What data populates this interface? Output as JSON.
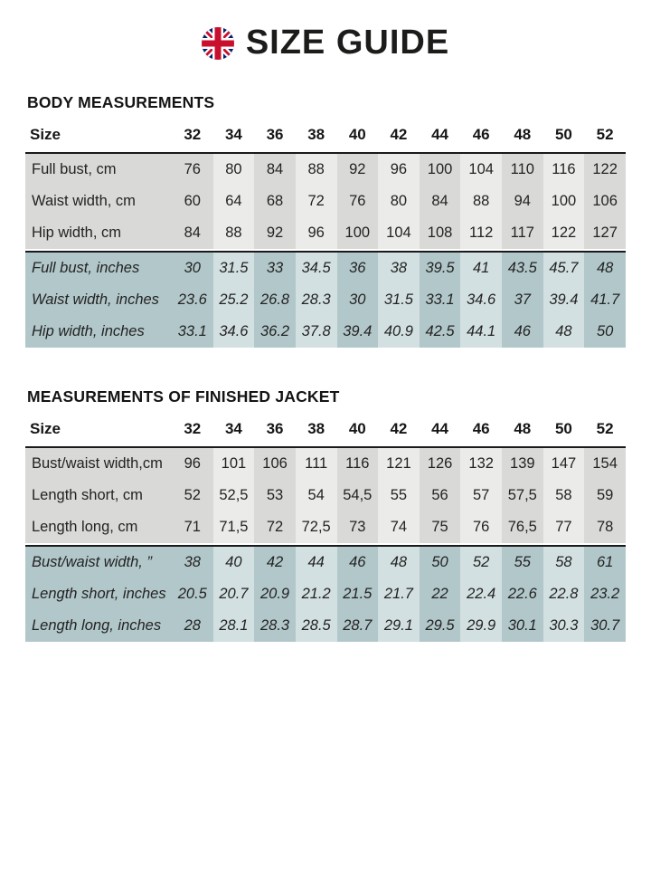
{
  "page": {
    "title": "SIZE GUIDE"
  },
  "colors": {
    "row_gray_dark": "#d9d9d7",
    "row_gray_light": "#ebebe9",
    "row_blue_dark": "#b2c7ca",
    "row_blue_light": "#d3e0e1",
    "rule_black": "#1a1a1a",
    "flag_navy": "#012169",
    "flag_red": "#c8102e"
  },
  "tables": [
    {
      "heading": "BODY MEASUREMENTS",
      "size_label": "Size",
      "sizes": [
        "32",
        "34",
        "36",
        "38",
        "40",
        "42",
        "44",
        "46",
        "48",
        "50",
        "52"
      ],
      "cm_rows": [
        {
          "label": "Full bust, cm",
          "values": [
            "76",
            "80",
            "84",
            "88",
            "92",
            "96",
            "100",
            "104",
            "110",
            "116",
            "122"
          ]
        },
        {
          "label": "Waist width, cm",
          "values": [
            "60",
            "64",
            "68",
            "72",
            "76",
            "80",
            "84",
            "88",
            "94",
            "100",
            "106"
          ]
        },
        {
          "label": "Hip width, cm",
          "values": [
            "84",
            "88",
            "92",
            "96",
            "100",
            "104",
            "108",
            "112",
            "117",
            "122",
            "127"
          ]
        }
      ],
      "inch_rows": [
        {
          "label": "Full bust, inches",
          "values": [
            "30",
            "31.5",
            "33",
            "34.5",
            "36",
            "38",
            "39.5",
            "41",
            "43.5",
            "45.7",
            "48"
          ]
        },
        {
          "label": "Waist width, inches",
          "values": [
            "23.6",
            "25.2",
            "26.8",
            "28.3",
            "30",
            "31.5",
            "33.1",
            "34.6",
            "37",
            "39.4",
            "41.7"
          ]
        },
        {
          "label": "Hip width, inches",
          "values": [
            "33.1",
            "34.6",
            "36.2",
            "37.8",
            "39.4",
            "40.9",
            "42.5",
            "44.1",
            "46",
            "48",
            "50"
          ]
        }
      ]
    },
    {
      "heading": "MEASUREMENTS OF FINISHED JACKET",
      "size_label": "Size",
      "sizes": [
        "32",
        "34",
        "36",
        "38",
        "40",
        "42",
        "44",
        "46",
        "48",
        "50",
        "52"
      ],
      "cm_rows": [
        {
          "label": "Bust/waist width,cm",
          "values": [
            "96",
            "101",
            "106",
            "111",
            "116",
            "121",
            "126",
            "132",
            "139",
            "147",
            "154"
          ]
        },
        {
          "label": "Length short, cm",
          "values": [
            "52",
            "52,5",
            "53",
            "54",
            "54,5",
            "55",
            "56",
            "57",
            "57,5",
            "58",
            "59"
          ]
        },
        {
          "label": "Length long, cm",
          "values": [
            "71",
            "71,5",
            "72",
            "72,5",
            "73",
            "74",
            "75",
            "76",
            "76,5",
            "77",
            "78"
          ]
        }
      ],
      "inch_rows": [
        {
          "label": "Bust/waist width, ”",
          "values": [
            "38",
            "40",
            "42",
            "44",
            "46",
            "48",
            "50",
            "52",
            "55",
            "58",
            "61"
          ]
        },
        {
          "label": "Length short, inches",
          "values": [
            "20.5",
            "20.7",
            "20.9",
            "21.2",
            "21.5",
            "21.7",
            "22",
            "22.4",
            "22.6",
            "22.8",
            "23.2"
          ]
        },
        {
          "label": "Length long, inches",
          "values": [
            "28",
            "28.1",
            "28.3",
            "28.5",
            "28.7",
            "29.1",
            "29.5",
            "29.9",
            "30.1",
            "30.3",
            "30.7"
          ]
        }
      ]
    }
  ]
}
